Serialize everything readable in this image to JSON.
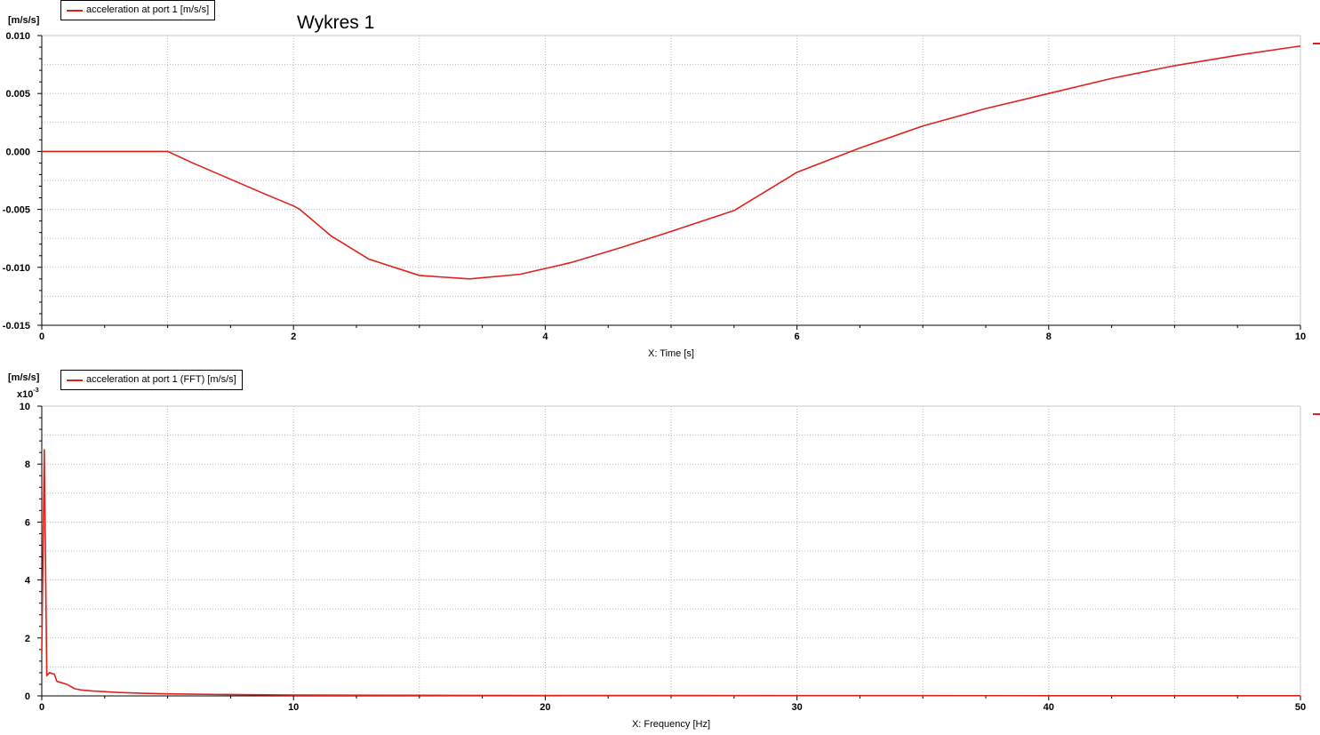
{
  "title": "Wykres 1",
  "colors": {
    "series": "#e0201b",
    "grid": "#b8b8b8",
    "axis": "#000000"
  },
  "charts": {
    "top": {
      "unit": "[m/s/s]",
      "legend": "acceleration at port 1 [m/s/s]",
      "xlabel": "X: Time [s]",
      "xticks": [
        "0",
        "2",
        "4",
        "6",
        "8",
        "10"
      ],
      "yticks": [
        "0.010",
        "0.005",
        "0.000",
        "-0.005",
        "-0.010",
        "-0.015"
      ]
    },
    "bottom": {
      "unit": "[m/s/s]",
      "exponent_base": "x10",
      "exponent_power": "-3",
      "legend": "acceleration at port 1 (FFT) [m/s/s]",
      "xlabel": "X: Frequency [Hz]",
      "xticks": [
        "0",
        "10",
        "20",
        "30",
        "40",
        "50"
      ],
      "yticks": [
        "10",
        "8",
        "6",
        "4",
        "2",
        "0"
      ]
    }
  },
  "chart_data": [
    {
      "type": "line",
      "xlabel": "X: Time [s]",
      "ylabel": "[m/s/s]",
      "xlim": [
        0,
        10
      ],
      "ylim": [
        -0.015,
        0.01
      ],
      "grid": true,
      "legend_position": "top-left",
      "series": [
        {
          "name": "acceleration at port 1 [m/s/s]",
          "x": [
            0,
            0.5,
            1.0,
            1.2,
            1.5,
            1.8,
            2.0,
            2.05,
            2.3,
            2.6,
            3.0,
            3.4,
            3.8,
            4.2,
            4.6,
            5.0,
            5.5,
            6.0,
            6.5,
            7.0,
            7.5,
            8.0,
            8.5,
            9.0,
            9.5,
            10.0
          ],
          "y": [
            0,
            0,
            0,
            -0.001,
            -0.0024,
            -0.0038,
            -0.0047,
            -0.005,
            -0.0073,
            -0.0093,
            -0.0107,
            -0.011,
            -0.0106,
            -0.0096,
            -0.0083,
            -0.0069,
            -0.0051,
            -0.0018,
            0.0003,
            0.0022,
            0.0037,
            0.005,
            0.0063,
            0.0074,
            0.0083,
            0.0091
          ]
        }
      ]
    },
    {
      "type": "line",
      "xlabel": "X: Frequency [Hz]",
      "ylabel": "[m/s/s]",
      "xlim": [
        0,
        50
      ],
      "ylim": [
        0,
        10
      ],
      "y_multiplier": "x10^-3",
      "grid": true,
      "legend_position": "top-left",
      "series": [
        {
          "name": "acceleration at port 1 (FFT) [m/s/s]",
          "x": [
            0,
            0.1,
            0.2,
            0.3,
            0.5,
            0.6,
            0.8,
            1.0,
            1.3,
            1.6,
            2.0,
            3.0,
            4.0,
            5.0,
            7.0,
            10.0,
            15.0,
            20.0,
            30.0,
            40.0,
            50.0
          ],
          "y": [
            1.5,
            8.5,
            0.7,
            0.8,
            0.75,
            0.5,
            0.45,
            0.4,
            0.25,
            0.2,
            0.17,
            0.12,
            0.09,
            0.07,
            0.05,
            0.03,
            0.02,
            0.015,
            0.01,
            0.007,
            0.005
          ]
        }
      ]
    }
  ]
}
